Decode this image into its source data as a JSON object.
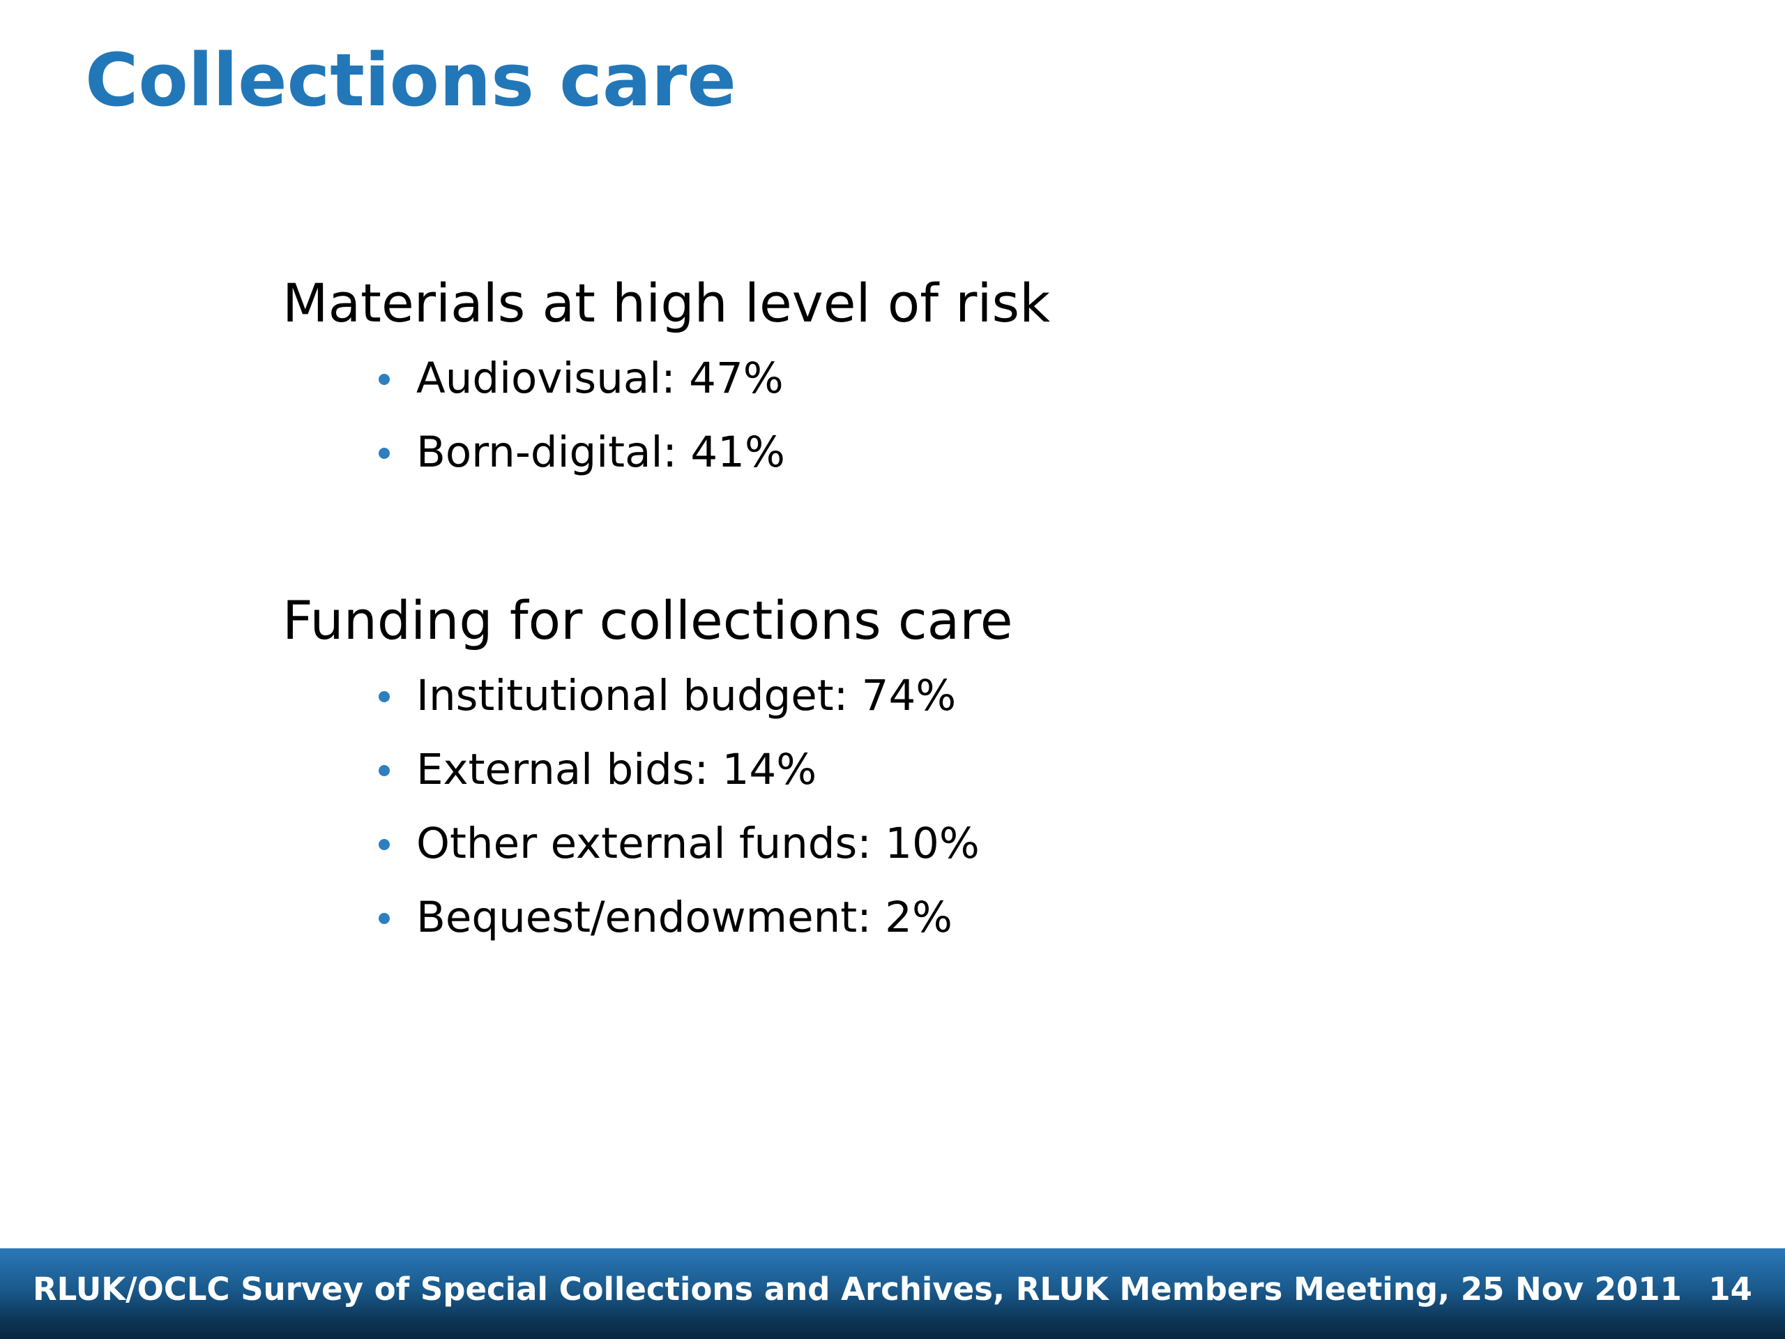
{
  "slide": {
    "title": "Collections care"
  },
  "sections": [
    {
      "heading": "Materials at high level of risk",
      "bullets": [
        "Audiovisual: 47%",
        "Born-digital: 41%"
      ]
    },
    {
      "heading": "Funding for collections care",
      "bullets": [
        "Institutional budget: 74%",
        "External bids: 14%",
        "Other external funds: 10%",
        "Bequest/endowment: 2%"
      ]
    }
  ],
  "footer": {
    "text": "RLUK/OCLC Survey of Special Collections and Archives, RLUK Members Meeting, 25 Nov 2011",
    "page_number": "14"
  },
  "colors": {
    "title": "#2277b8",
    "bullet": "#2d7fc0",
    "footer_bar": "#1a5a8c"
  }
}
